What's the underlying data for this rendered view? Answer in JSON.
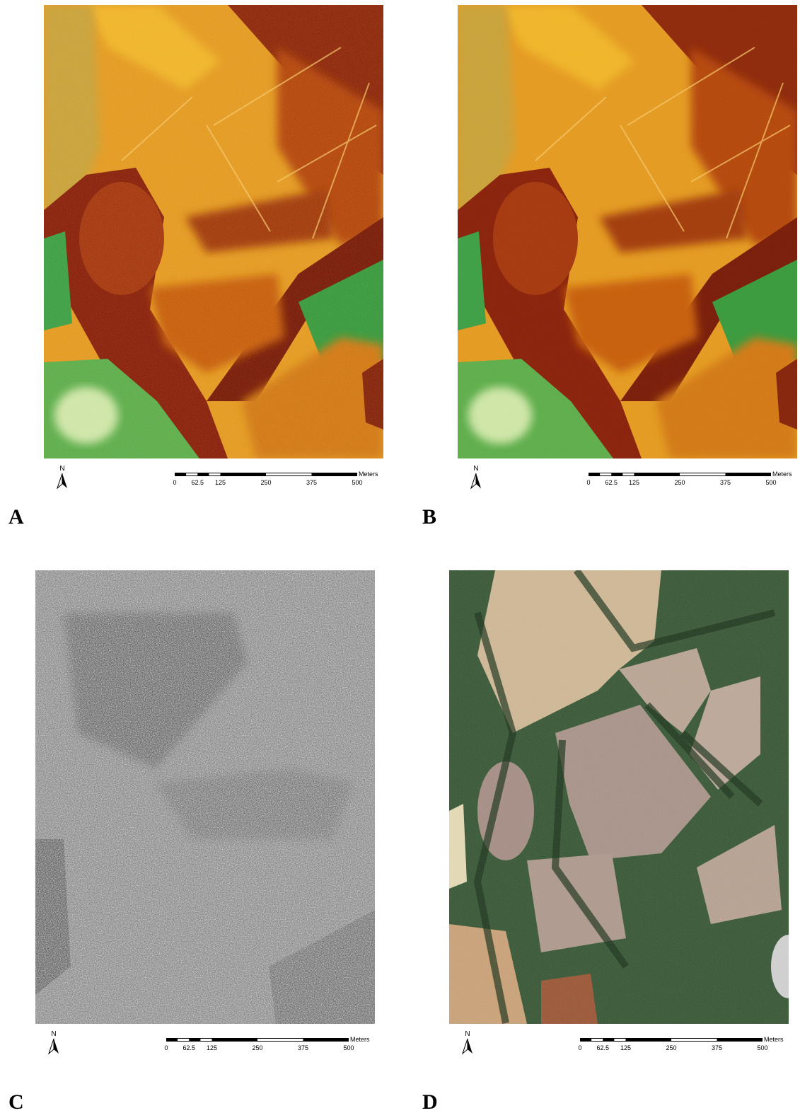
{
  "panels": [
    {
      "label": "A",
      "north": "N",
      "scale": {
        "ticks": [
          "0",
          "62.5",
          "125",
          "250",
          "375",
          "500"
        ],
        "unit": "Meters"
      }
    },
    {
      "label": "B",
      "north": "N",
      "scale": {
        "ticks": [
          "0",
          "62.5",
          "125",
          "250",
          "375",
          "500"
        ],
        "unit": "Meters"
      }
    },
    {
      "label": "C",
      "north": "N",
      "scale": {
        "ticks": [
          "0",
          "62.5",
          "125",
          "250",
          "375",
          "500"
        ],
        "unit": "Meters"
      }
    },
    {
      "label": "D",
      "north": "N",
      "scale": {
        "ticks": [
          "0",
          "62.5",
          "125",
          "250",
          "375",
          "500"
        ],
        "unit": "Meters"
      }
    }
  ]
}
